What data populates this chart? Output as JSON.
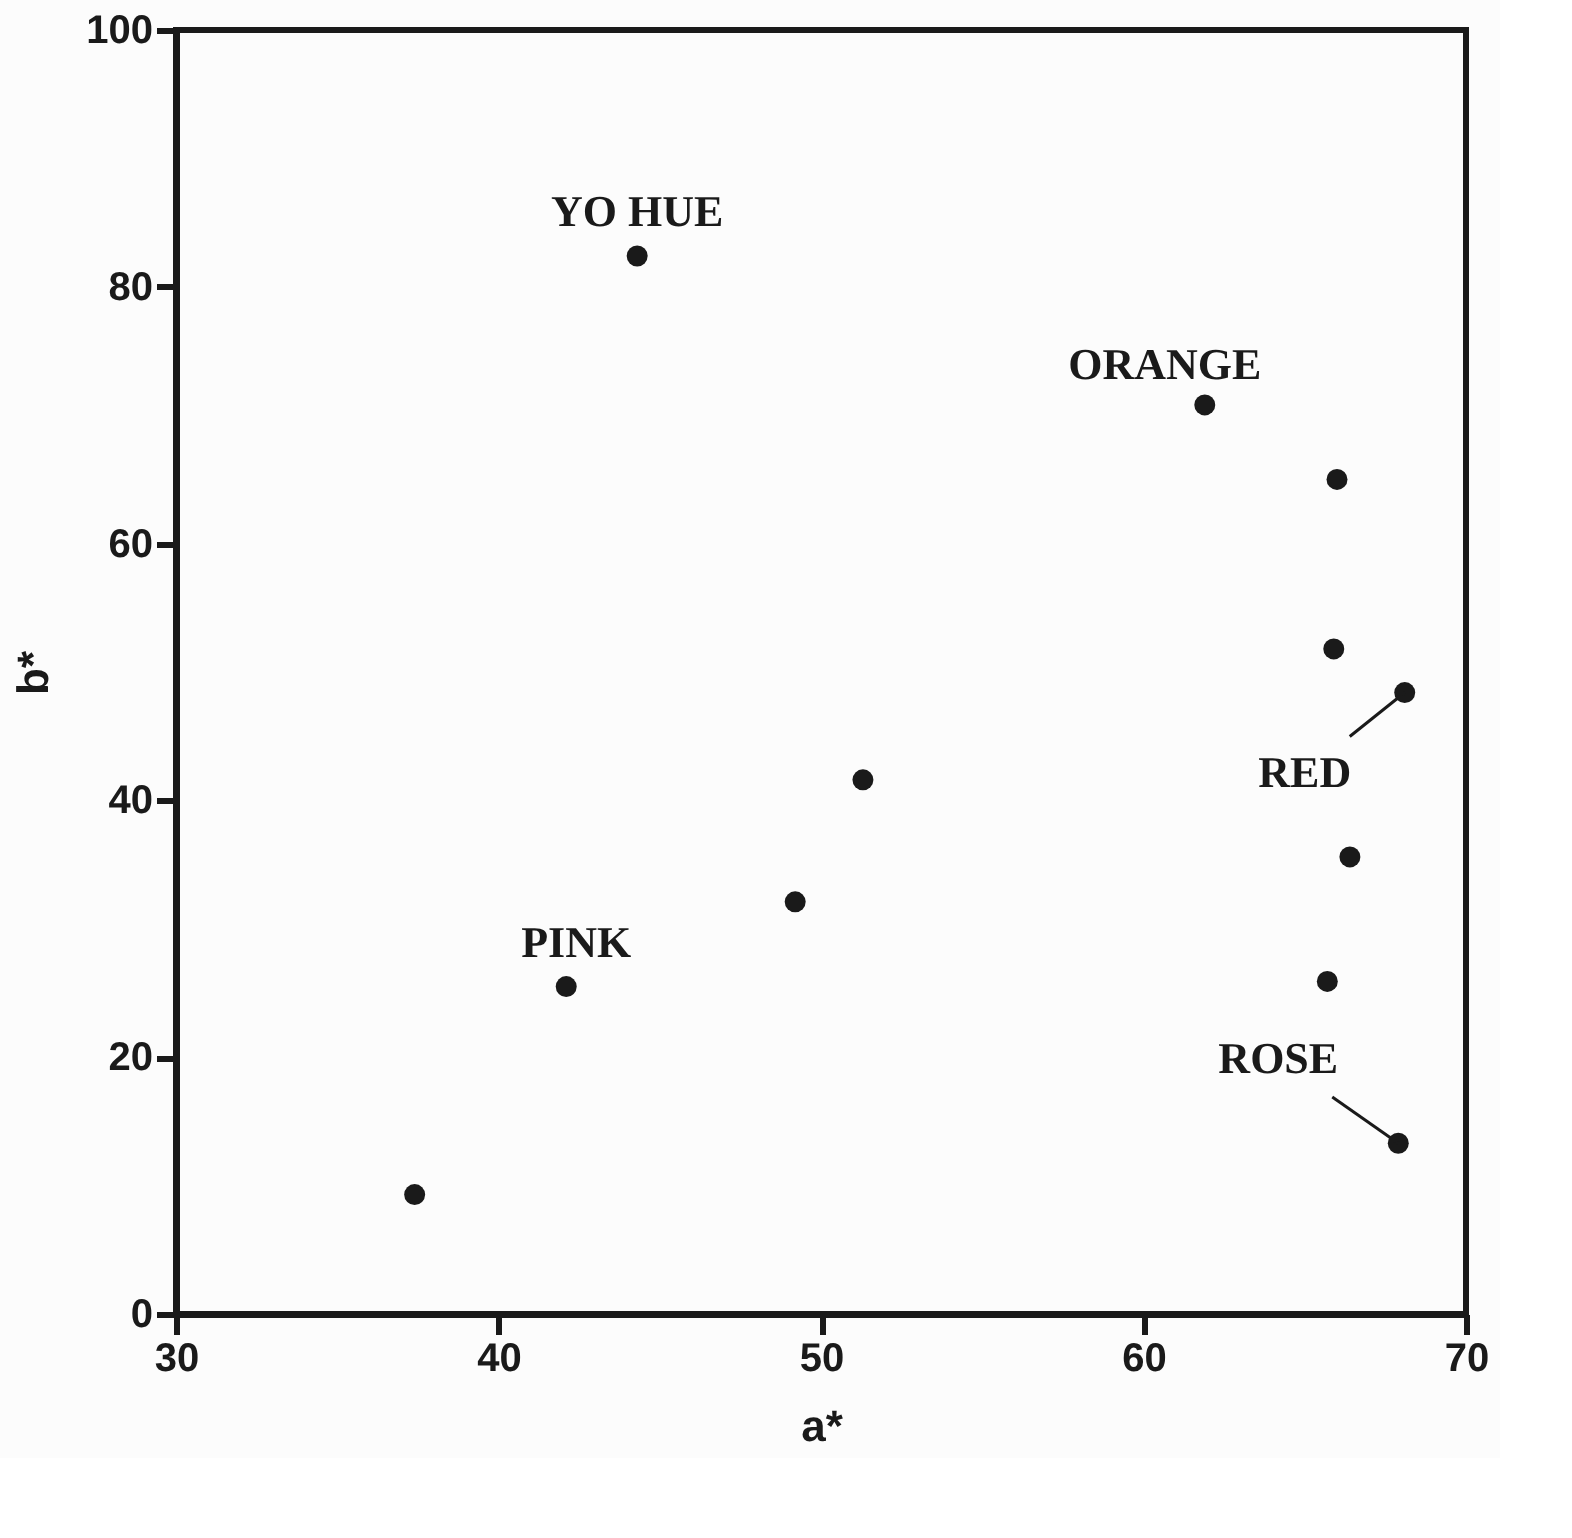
{
  "chart_data": {
    "type": "scatter",
    "xlabel": "a*",
    "ylabel": "b*",
    "x": [
      44.3,
      61.9,
      66.0,
      65.9,
      68.1,
      51.3,
      66.4,
      49.2,
      42.1,
      65.7,
      67.9,
      37.4
    ],
    "series": [
      {
        "color": "#1a1a1a",
        "values": [
          82.4,
          70.8,
          65.0,
          51.8,
          48.4,
          41.6,
          35.6,
          32.1,
          25.5,
          25.9,
          13.3,
          9.3
        ]
      }
    ],
    "marker": "circle",
    "xlim": [
      30,
      70
    ],
    "xticks": [
      30,
      40,
      50,
      60,
      70
    ],
    "ylim": [
      0,
      100
    ],
    "yticks": [
      0,
      20,
      40,
      60,
      80,
      100
    ],
    "grid": false,
    "annotations": [
      {
        "text": "YO HUE",
        "x": 44.3,
        "y": 82.4
      },
      {
        "text": "ORANGE",
        "x": 61.9,
        "y": 70.8
      },
      {
        "text": "RED",
        "x": 68.1,
        "y": 48.4
      },
      {
        "text": "PINK",
        "x": 42.1,
        "y": 25.5
      },
      {
        "text": "ROSE",
        "x": 67.9,
        "y": 13.3
      }
    ]
  }
}
